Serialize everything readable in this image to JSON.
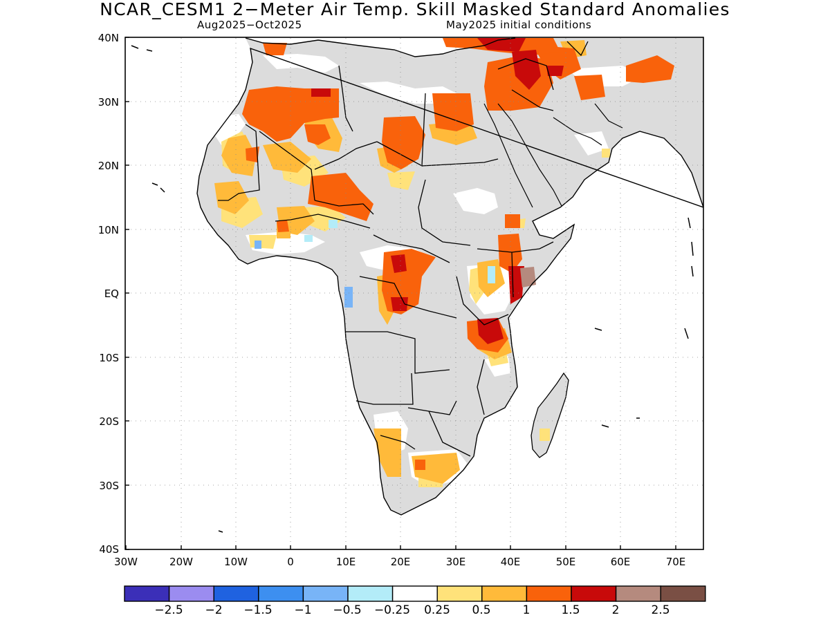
{
  "title": "NCAR_CESM1 2−Meter Air Temp. Skill Masked Standard Anomalies",
  "subtitle_left": "Aug2025−Oct2025",
  "subtitle_right": "May2025 initial conditions",
  "y_ticks": [
    "40N",
    "30N",
    "20N",
    "10N",
    "EQ",
    "10S",
    "20S",
    "30S",
    "40S"
  ],
  "x_ticks": [
    "30W",
    "20W",
    "10W",
    "0",
    "10E",
    "20E",
    "30E",
    "40E",
    "50E",
    "60E",
    "70E"
  ],
  "colorbar": {
    "colors": [
      "#3b2fb8",
      "#9b8cf0",
      "#1f62e0",
      "#3d8ff0",
      "#78b4f7",
      "#b3ecf8",
      "#ffffff",
      "#ffe27a",
      "#ffba3a",
      "#f9620b",
      "#c80a0a",
      "#b58a7e",
      "#7a4f44"
    ],
    "labels": [
      "−2.5",
      "−2",
      "−1.5",
      "−1",
      "−0.5",
      "−0.25",
      "0.25",
      "0.5",
      "1",
      "1.5",
      "2",
      "2.5"
    ]
  },
  "legend_colors": {
    "land_masked": "#dcdcdc",
    "land_skillful_neutral": "#ffffff"
  }
}
